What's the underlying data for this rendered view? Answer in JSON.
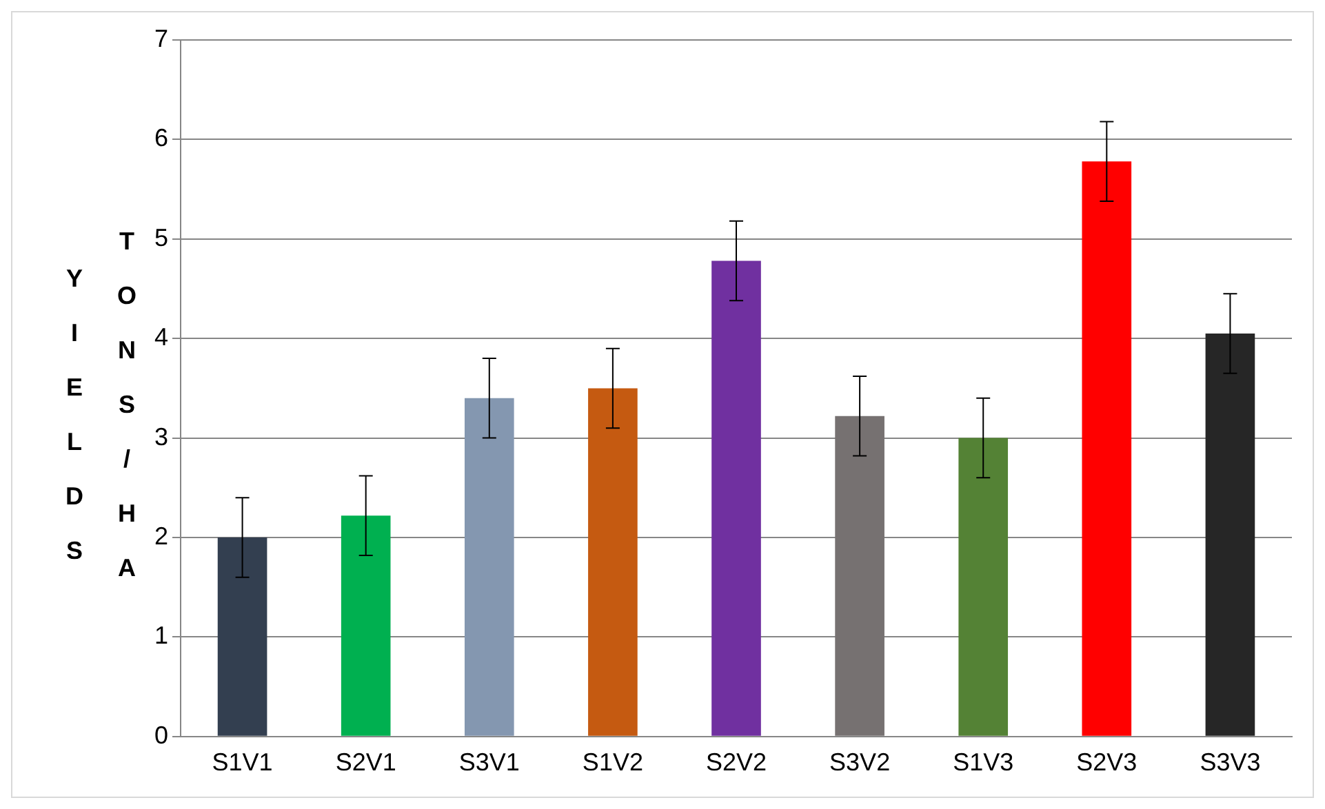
{
  "chart_data": {
    "type": "bar",
    "ylabel": "YIELDS TONS/HA",
    "categories": [
      "S1V1",
      "S2V1",
      "S3V1",
      "S1V2",
      "S2V2",
      "S3V2",
      "S1V3",
      "S2V3",
      "S3V3"
    ],
    "values": [
      2.0,
      2.22,
      3.4,
      3.5,
      4.78,
      3.22,
      3.0,
      5.78,
      4.05
    ],
    "colors": [
      "#333f50",
      "#00b050",
      "#8497b0",
      "#c55a11",
      "#7030a0",
      "#767171",
      "#548235",
      "#ff0000",
      "#262626"
    ],
    "errors": [
      0.4,
      0.4,
      0.4,
      0.4,
      0.4,
      0.4,
      0.4,
      0.4,
      0.4
    ],
    "ylim": [
      0,
      7
    ],
    "yticks": [
      0,
      1,
      2,
      3,
      4,
      5,
      6,
      7
    ],
    "grid": "y",
    "legend": false
  }
}
